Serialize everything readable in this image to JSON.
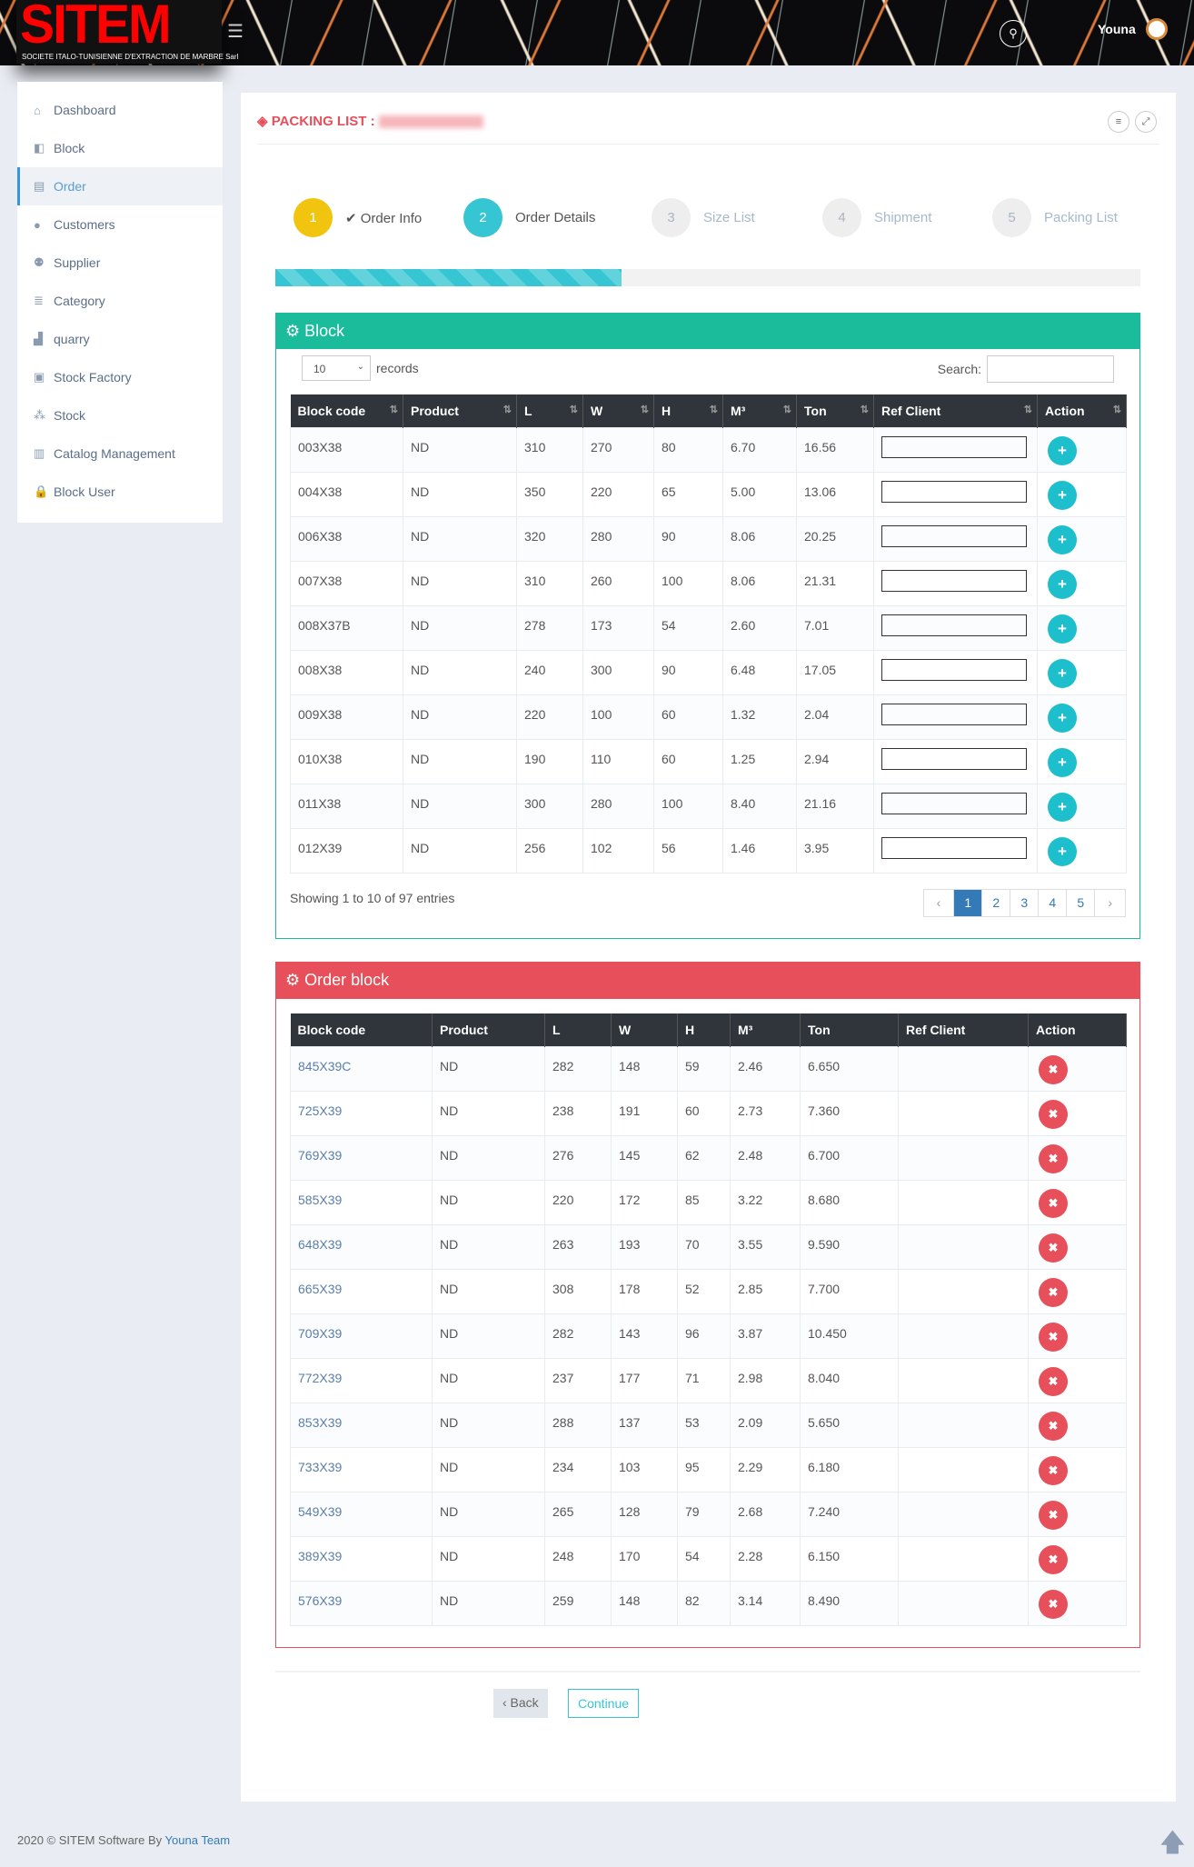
{
  "header": {
    "logo_text": "SITEM",
    "logo_sub": "SOCIETE ITALO-TUNISIENNE D'EXTRACTION DE MARBRE Sarl",
    "user": "Youna"
  },
  "sidebar": {
    "items": [
      {
        "label": "Dashboard",
        "icon": "home-icon"
      },
      {
        "label": "Block",
        "icon": "cube-icon"
      },
      {
        "label": "Order",
        "icon": "document-icon",
        "active": true
      },
      {
        "label": "Customers",
        "icon": "user-icon"
      },
      {
        "label": "Supplier",
        "icon": "users-icon"
      },
      {
        "label": "Category",
        "icon": "list-icon"
      },
      {
        "label": "quarry",
        "icon": "chart-icon"
      },
      {
        "label": "Stock Factory",
        "icon": "archive-icon"
      },
      {
        "label": "Stock",
        "icon": "cubes-icon"
      },
      {
        "label": "Catalog Management",
        "icon": "columns-icon"
      },
      {
        "label": "Block User",
        "icon": "lock-icon"
      }
    ]
  },
  "page": {
    "title": "PACKING LIST :"
  },
  "steps": [
    {
      "num": "1",
      "label": "✔ Order Info",
      "state": "done"
    },
    {
      "num": "2",
      "label": "Order Details",
      "state": "current"
    },
    {
      "num": "3",
      "label": "Size List"
    },
    {
      "num": "4",
      "label": "Shipment"
    },
    {
      "num": "5",
      "label": "Packing List"
    }
  ],
  "progress_percent": 40,
  "colors": {
    "block_panel": "#1abc9c",
    "order_panel": "#e7505a",
    "step_done": "#f1c40f",
    "step_current": "#36c6d3"
  },
  "block_panel": {
    "title": "Block",
    "page_size": "10",
    "records_label": "records",
    "search_label": "Search:",
    "search_value": "",
    "columns": [
      "Block code",
      "Product",
      "L",
      "W",
      "H",
      "M³",
      "Ton",
      "Ref Client",
      "Action"
    ],
    "rows": [
      [
        "003X38",
        "ND",
        "310",
        "270",
        "80",
        "6.70",
        "16.56"
      ],
      [
        "004X38",
        "ND",
        "350",
        "220",
        "65",
        "5.00",
        "13.06"
      ],
      [
        "006X38",
        "ND",
        "320",
        "280",
        "90",
        "8.06",
        "20.25"
      ],
      [
        "007X38",
        "ND",
        "310",
        "260",
        "100",
        "8.06",
        "21.31"
      ],
      [
        "008X37B",
        "ND",
        "278",
        "173",
        "54",
        "2.60",
        "7.01"
      ],
      [
        "008X38",
        "ND",
        "240",
        "300",
        "90",
        "6.48",
        "17.05"
      ],
      [
        "009X38",
        "ND",
        "220",
        "100",
        "60",
        "1.32",
        "2.04"
      ],
      [
        "010X38",
        "ND",
        "190",
        "110",
        "60",
        "1.25",
        "2.94"
      ],
      [
        "011X38",
        "ND",
        "300",
        "280",
        "100",
        "8.40",
        "21.16"
      ],
      [
        "012X39",
        "ND",
        "256",
        "102",
        "56",
        "1.46",
        "3.95"
      ]
    ],
    "showing": "Showing 1 to 10 of 97 entries",
    "pages": [
      "‹",
      "1",
      "2",
      "3",
      "4",
      "5",
      "›"
    ],
    "current_page": "1"
  },
  "order_panel": {
    "title": "Order block",
    "columns": [
      "Block code",
      "Product",
      "L",
      "W",
      "H",
      "M³",
      "Ton",
      "Ref Client",
      "Action"
    ],
    "rows": [
      [
        "845X39C",
        "ND",
        "282",
        "148",
        "59",
        "2.46",
        "6.650",
        ""
      ],
      [
        "725X39",
        "ND",
        "238",
        "191",
        "60",
        "2.73",
        "7.360",
        ""
      ],
      [
        "769X39",
        "ND",
        "276",
        "145",
        "62",
        "2.48",
        "6.700",
        ""
      ],
      [
        "585X39",
        "ND",
        "220",
        "172",
        "85",
        "3.22",
        "8.680",
        ""
      ],
      [
        "648X39",
        "ND",
        "263",
        "193",
        "70",
        "3.55",
        "9.590",
        ""
      ],
      [
        "665X39",
        "ND",
        "308",
        "178",
        "52",
        "2.85",
        "7.700",
        ""
      ],
      [
        "709X39",
        "ND",
        "282",
        "143",
        "96",
        "3.87",
        "10.450",
        ""
      ],
      [
        "772X39",
        "ND",
        "237",
        "177",
        "71",
        "2.98",
        "8.040",
        ""
      ],
      [
        "853X39",
        "ND",
        "288",
        "137",
        "53",
        "2.09",
        "5.650",
        ""
      ],
      [
        "733X39",
        "ND",
        "234",
        "103",
        "95",
        "2.29",
        "6.180",
        ""
      ],
      [
        "549X39",
        "ND",
        "265",
        "128",
        "79",
        "2.68",
        "7.240",
        ""
      ],
      [
        "389X39",
        "ND",
        "248",
        "170",
        "54",
        "2.28",
        "6.150",
        ""
      ],
      [
        "576X39",
        "ND",
        "259",
        "148",
        "82",
        "3.14",
        "8.490",
        ""
      ]
    ]
  },
  "buttons": {
    "back": "‹ Back",
    "continue": "Continue"
  },
  "footer": {
    "text": "2020 © SITEM Software By",
    "link": "Youna Team"
  }
}
